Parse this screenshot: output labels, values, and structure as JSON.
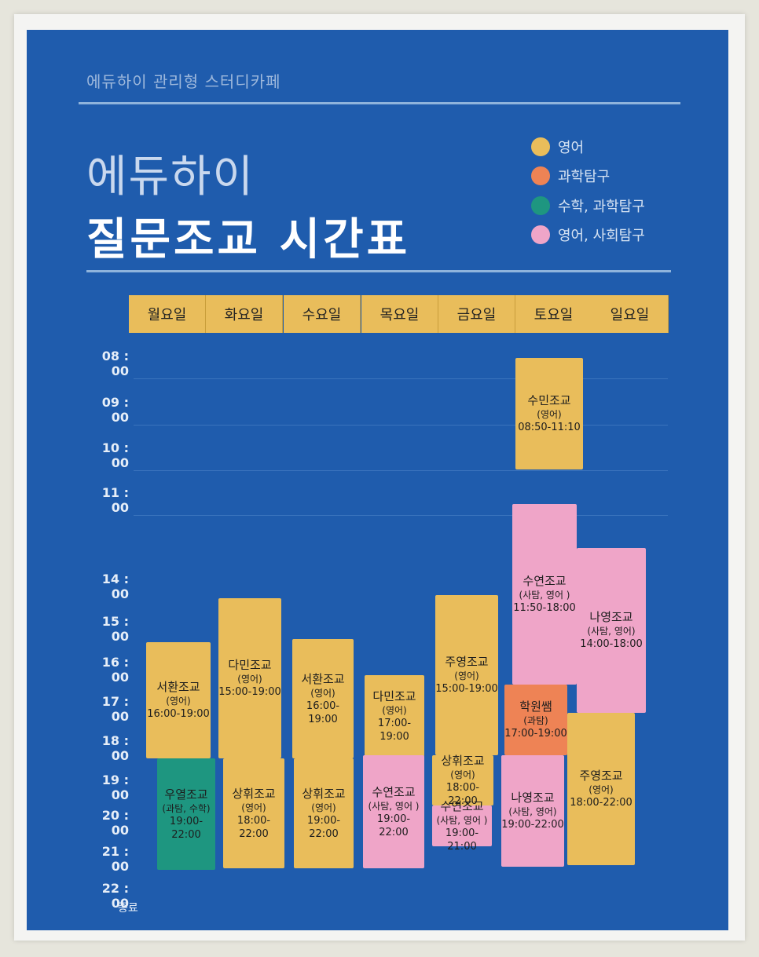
{
  "colors": {
    "english": "#e9bd5b",
    "science": "#ee8355",
    "math_science": "#1e9680",
    "english_social": "#efa5c8",
    "poster_bg": "#1f5cad"
  },
  "header": {
    "brand": "에듀하이 관리형 스터디카페",
    "title_line1": "에듀하이",
    "title_line2": "질문조교 시간표"
  },
  "legend": [
    {
      "label": "영어",
      "color": "#e9bd5b"
    },
    {
      "label": "과학탐구",
      "color": "#ee8355"
    },
    {
      "label": "수학, 과학탐구",
      "color": "#1e9680"
    },
    {
      "label": "영어, 사회탐구",
      "color": "#efa5c8"
    }
  ],
  "days": [
    "월요일",
    "화요일",
    "수요일",
    "목요일",
    "금요일",
    "토요일",
    "일요일"
  ],
  "times": [
    "08 : 00",
    "09 : 00",
    "10 : 00",
    "11 : 00",
    "14 : 00",
    "15 : 00",
    "16 : 00",
    "17 : 00",
    "18 : 00",
    "19 : 00",
    "20 : 00",
    "21 : 00",
    "22 : 00"
  ],
  "end_label": "종료",
  "blocks": [
    {
      "day": 0,
      "name": "서환조교",
      "sub": "(영어)",
      "time": "16:00-19:00",
      "color": "#e9bd5b"
    },
    {
      "day": 0,
      "name": "우열조교",
      "sub": "(과탐, 수학)",
      "time": "19:00-22:00",
      "color": "#1e9680"
    },
    {
      "day": 1,
      "name": "다민조교",
      "sub": "(영어)",
      "time": "15:00-19:00",
      "color": "#e9bd5b"
    },
    {
      "day": 1,
      "name": "상휘조교",
      "sub": "(영어)",
      "time": "18:00-22:00",
      "color": "#e9bd5b"
    },
    {
      "day": 2,
      "name": "서환조교",
      "sub": "(영어)",
      "time": "16:00-19:00",
      "color": "#e9bd5b"
    },
    {
      "day": 2,
      "name": "상휘조교",
      "sub": "(영어)",
      "time": "19:00-22:00",
      "color": "#e9bd5b"
    },
    {
      "day": 3,
      "name": "다민조교",
      "sub": "(영어)",
      "time": "17:00-19:00",
      "color": "#e9bd5b"
    },
    {
      "day": 3,
      "name": "수연조교",
      "sub": "(사탐, 영어 )",
      "time": "19:00-22:00",
      "color": "#efa5c8"
    },
    {
      "day": 4,
      "name": "주영조교",
      "sub": "(영어)",
      "time": "15:00-19:00",
      "color": "#e9bd5b"
    },
    {
      "day": 4,
      "name": "상휘조교",
      "sub": "(영어)",
      "time": "18:00-22:00",
      "color": "#e9bd5b"
    },
    {
      "day": 4,
      "name": "수연조교",
      "sub": "(사탐, 영어 )",
      "time": "19:00-21:00",
      "color": "#efa5c8"
    },
    {
      "day": 5,
      "name": "수민조교",
      "sub": "(영어)",
      "time": "08:50-11:10",
      "color": "#e9bd5b"
    },
    {
      "day": 5,
      "name": "수연조교",
      "sub": "(사탐, 영어 )",
      "time": "11:50-18:00",
      "color": "#efa5c8"
    },
    {
      "day": 5,
      "name": "학원쌤",
      "sub": "(과탐)",
      "time": "17:00-19:00",
      "color": "#ee8355"
    },
    {
      "day": 5,
      "name": "나영조교",
      "sub": "(사탐, 영어)",
      "time": "19:00-22:00",
      "color": "#efa5c8"
    },
    {
      "day": 6,
      "name": "나영조교",
      "sub": "(사탐, 영어)",
      "time": "14:00-18:00",
      "color": "#efa5c8"
    },
    {
      "day": 6,
      "name": "주영조교",
      "sub": "(영어)",
      "time": "18:00-22:00",
      "color": "#e9bd5b"
    }
  ]
}
